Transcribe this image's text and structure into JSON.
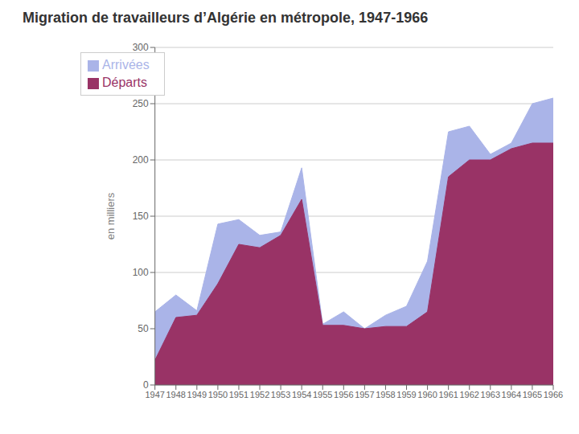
{
  "chart_data": {
    "type": "area",
    "title": "Migration de travailleurs d’Algérie en métropole, 1947-1966",
    "y_label": "en milliers",
    "x": [
      1947,
      1948,
      1949,
      1950,
      1951,
      1952,
      1953,
      1954,
      1955,
      1956,
      1957,
      1958,
      1959,
      1960,
      1961,
      1962,
      1963,
      1964,
      1965,
      1966
    ],
    "series": [
      {
        "name": "Arrivées",
        "color": "#aab4e8",
        "values": [
          65,
          80,
          66,
          143,
          147,
          133,
          136,
          193,
          54,
          65,
          50,
          62,
          70,
          110,
          225,
          230,
          205,
          215,
          250,
          255
        ]
      },
      {
        "name": "Départs",
        "color": "#993366",
        "values": [
          22,
          60,
          62,
          90,
          125,
          122,
          133,
          165,
          53,
          53,
          50,
          52,
          52,
          65,
          185,
          200,
          200,
          210,
          215,
          215
        ]
      }
    ],
    "xlim": [
      1947,
      1966
    ],
    "xticks": [
      1947,
      1948,
      1949,
      1950,
      1951,
      1952,
      1953,
      1954,
      1955,
      1956,
      1957,
      1958,
      1959,
      1960,
      1961,
      1962,
      1963,
      1964,
      1965,
      1966
    ],
    "ylim": [
      0,
      300
    ],
    "yticks": [
      0,
      50,
      100,
      150,
      200,
      250,
      300
    ],
    "grid": true,
    "legend": "upper left"
  }
}
